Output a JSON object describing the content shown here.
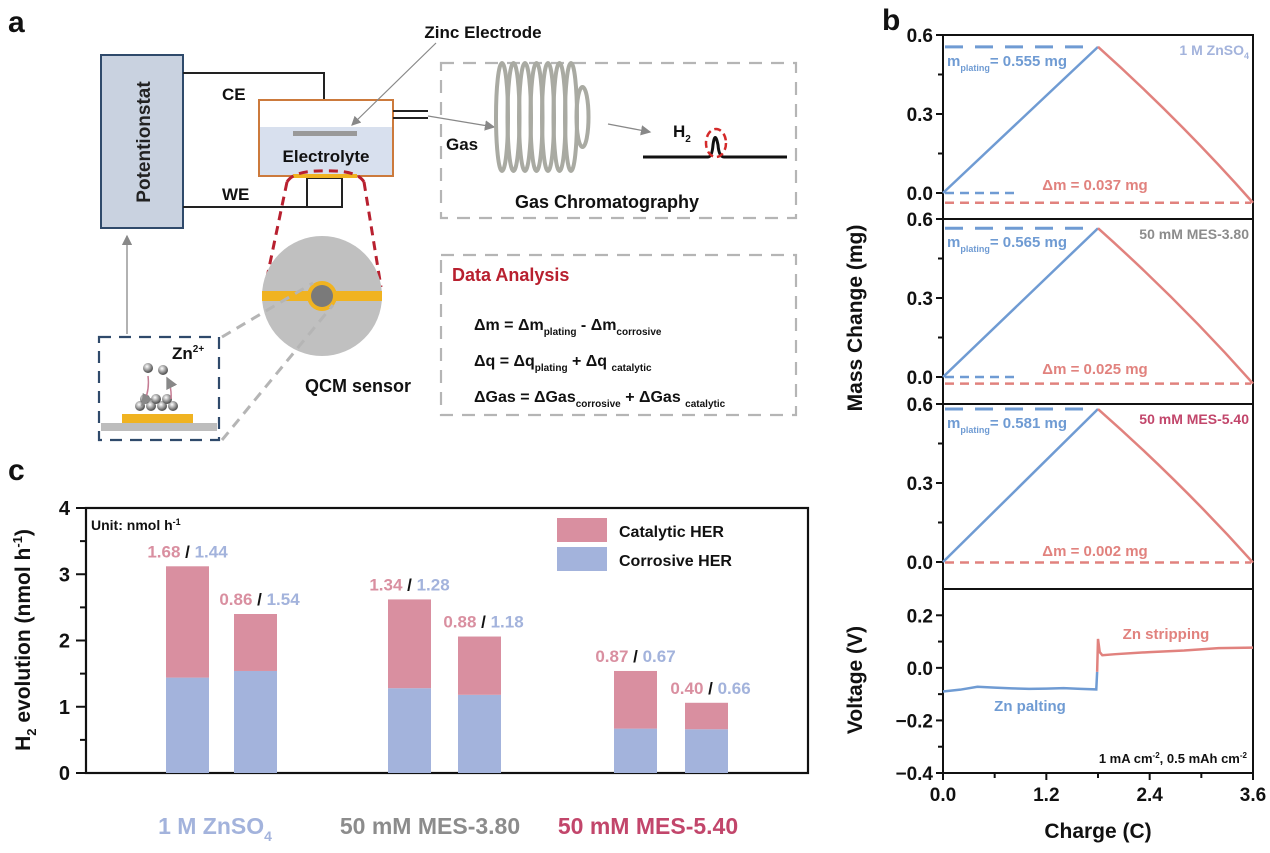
{
  "colors": {
    "blue": "#6f9bd3",
    "red": "#e1827e",
    "bar_pink": "#d98fa0",
    "bar_blue": "#a3b3dc",
    "label_pink": "#d98fa0",
    "label_blue": "#a3b3dc",
    "gray_label": "#8c8c8c",
    "crimson_label": "#c2466b",
    "dark_red_heading": "#b8202f",
    "navy": "#2f4a6b",
    "orange_cell": "#cc7a3c",
    "gold": "#f0b321"
  },
  "panel_a": {
    "label": "a",
    "potentiostat": "Potentionstat",
    "ce": "CE",
    "we": "WE",
    "electrode": "Zinc Electrode",
    "electrolyte": "Electrolyte",
    "gas": "Gas",
    "h2": "H",
    "h2_sub": "2",
    "gc": "Gas Chromatography",
    "qcm": "QCM sensor",
    "zn_ion": "Zn",
    "zn_ion_sup": "2+",
    "analysis_title": "Data Analysis",
    "equations": [
      {
        "lhs": "Δm = Δm",
        "s1": "plating",
        "mid": " - Δm",
        "s2": "corrosive"
      },
      {
        "lhs": "Δq = Δq",
        "s1": "plating",
        "mid": " + Δq ",
        "s2": "catalytic"
      },
      {
        "lhs": "ΔGas = ΔGas",
        "s1": "corrosive",
        "mid": " + ΔGas ",
        "s2": "catalytic"
      }
    ]
  },
  "chart_data": [
    {
      "type": "line",
      "panel": "b",
      "title": "Mass change during Zn plating/stripping",
      "xlabel": "Charge (C)",
      "ylabel": "Mass Change (mg)",
      "xlim": [
        0,
        3.6
      ],
      "xticks": [
        "0.0",
        "1.2",
        "2.4",
        "3.6"
      ],
      "ylim": [
        -0.06,
        0.6
      ],
      "yticks": [
        "0.0",
        "0.3",
        "0.6"
      ],
      "subplots": [
        {
          "name": "1 M ZnSO4",
          "label_main": "1 M ZnSO",
          "label_sub": "4",
          "label_color": "#a3b3dc",
          "peak_x": 1.8,
          "m_plating": 0.555,
          "delta_m": 0.037,
          "m_plating_text": "= 0.555 mg",
          "delta_m_text": "Δm = 0.037 mg"
        },
        {
          "name": "50 mM MES-3.80",
          "label_main": "50 mM MES-3.80",
          "label_sub": "",
          "label_color": "#8c8c8c",
          "peak_x": 1.8,
          "m_plating": 0.565,
          "delta_m": 0.025,
          "m_plating_text": "= 0.565 mg",
          "delta_m_text": "Δm = 0.025 mg"
        },
        {
          "name": "50 mM MES-5.40",
          "label_main": "50 mM MES-5.40",
          "label_sub": "",
          "label_color": "#c2466b",
          "peak_x": 1.8,
          "m_plating": 0.581,
          "delta_m": 0.002,
          "m_plating_text": "= 0.581 mg",
          "delta_m_text": "Δm = 0.002 mg"
        }
      ],
      "m_label": "m",
      "m_sub": "plating"
    },
    {
      "type": "line",
      "panel": "b-voltage",
      "xlabel": "Charge (C)",
      "ylabel": "Voltage (V)",
      "xlim": [
        0,
        3.6
      ],
      "ylim": [
        -0.4,
        0.3
      ],
      "yticks": [
        "0.2",
        "0.0",
        "−0.2",
        "−0.4"
      ],
      "ytick_values": [
        0.2,
        0.0,
        -0.2,
        -0.4
      ],
      "series": [
        {
          "name": "Zn palting",
          "x": [
            0,
            0.2,
            0.4,
            0.6,
            0.8,
            1.0,
            1.2,
            1.4,
            1.6,
            1.78
          ],
          "y": [
            -0.09,
            -0.083,
            -0.072,
            -0.075,
            -0.078,
            -0.08,
            -0.079,
            -0.077,
            -0.08,
            -0.082
          ]
        },
        {
          "name": "Zn stripping",
          "x": [
            1.8,
            1.82,
            1.85,
            2.0,
            2.4,
            2.8,
            3.2,
            3.6
          ],
          "y": [
            0.11,
            0.06,
            0.048,
            0.052,
            0.06,
            0.066,
            0.075,
            0.077
          ]
        }
      ],
      "annotation": "1 mA cm",
      "annotation_sup": "-2",
      "annotation_mid": ", 0.5 mAh cm",
      "annotation_sup2": "-2"
    },
    {
      "type": "bar",
      "panel": "c",
      "stacked": true,
      "ylabel_main": "H",
      "ylabel_sub": "2",
      "ylabel_rest": " evolution (nmol h",
      "ylabel_sup": "-1",
      "ylabel_end": ")",
      "ylim": [
        0,
        4
      ],
      "yticks": [
        "0",
        "1",
        "2",
        "3",
        "4"
      ],
      "unit_note": "Unit: nmol h",
      "unit_sup": "-1",
      "legend": [
        "Catalytic HER",
        "Corrosive HER"
      ],
      "legend_position": "top-right",
      "groups": [
        {
          "name": "1 M ZnSO4",
          "label_main": "1 M ZnSO",
          "label_sub": "4",
          "color": "#a3b3dc",
          "bars": [
            {
              "catalytic": 1.68,
              "corrosive": 1.44
            },
            {
              "catalytic": 0.86,
              "corrosive": 1.54
            }
          ]
        },
        {
          "name": "50 mM MES-3.80",
          "label_main": "50 mM MES-3.80",
          "label_sub": "",
          "color": "#8c8c8c",
          "bars": [
            {
              "catalytic": 1.34,
              "corrosive": 1.28
            },
            {
              "catalytic": 0.88,
              "corrosive": 1.18
            }
          ]
        },
        {
          "name": "50 mM MES-5.40",
          "label_main": "50 mM MES-5.40",
          "label_sub": "",
          "color": "#c2466b",
          "bars": [
            {
              "catalytic": 0.87,
              "corrosive": 0.67
            },
            {
              "catalytic": 0.4,
              "corrosive": 0.66
            }
          ]
        }
      ]
    }
  ],
  "panel_labels": {
    "b": "b",
    "c": "c"
  },
  "b_annotations": {
    "plating": "Zn palting",
    "stripping": "Zn stripping"
  }
}
